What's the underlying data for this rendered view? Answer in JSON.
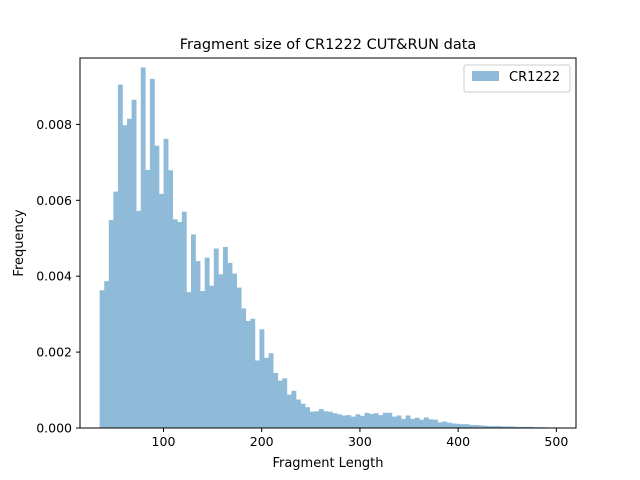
{
  "chart_data": {
    "type": "bar",
    "title": "Fragment size of CR1222 CUT&RUN data",
    "xlabel": "Fragment Length",
    "ylabel": "Frequency",
    "xlim": [
      15,
      520
    ],
    "ylim": [
      0,
      0.00975
    ],
    "xticks": [
      100,
      200,
      300,
      400,
      500
    ],
    "yticks": [
      0.0,
      0.002,
      0.004,
      0.006,
      0.008
    ],
    "ytick_labels": [
      "0.000",
      "0.002",
      "0.004",
      "0.006",
      "0.008"
    ],
    "legend": {
      "position": "top-right"
    },
    "series": [
      {
        "name": "CR1222",
        "color": "#8fbbd9",
        "bin_start": 35,
        "bin_width": 4.65,
        "values": [
          0.00363,
          0.00387,
          0.00548,
          0.00623,
          0.00905,
          0.00798,
          0.00815,
          0.00865,
          0.00572,
          0.0095,
          0.0068,
          0.0092,
          0.00744,
          0.00617,
          0.00762,
          0.00679,
          0.0055,
          0.00543,
          0.0057,
          0.00358,
          0.0051,
          0.0044,
          0.00361,
          0.00449,
          0.00375,
          0.00473,
          0.00405,
          0.00477,
          0.00435,
          0.00407,
          0.0037,
          0.00315,
          0.00282,
          0.00288,
          0.00178,
          0.0026,
          0.00185,
          0.00197,
          0.00145,
          0.00125,
          0.00131,
          0.00088,
          0.00098,
          0.00075,
          0.00064,
          0.00055,
          0.00043,
          0.00044,
          0.0005,
          0.00044,
          0.00043,
          0.00039,
          0.00036,
          0.00033,
          0.00034,
          0.0003,
          0.00036,
          0.00032,
          0.0004,
          0.00037,
          0.00039,
          0.00034,
          0.0004,
          0.0004,
          0.0003,
          0.00033,
          0.00024,
          0.00033,
          0.00024,
          0.00027,
          0.00022,
          0.00028,
          0.00023,
          0.00022,
          0.00015,
          0.00017,
          0.00014,
          0.00012,
          0.00011,
          0.0001,
          0.0001,
          8e-05,
          8e-05,
          7e-05,
          6e-05,
          5e-05,
          5e-05,
          5e-05,
          4e-05,
          4e-05,
          4e-05,
          3e-05,
          3e-05,
          3e-05,
          3e-05,
          2e-05,
          2e-05,
          2e-05,
          1e-05,
          1e-05
        ]
      }
    ]
  }
}
